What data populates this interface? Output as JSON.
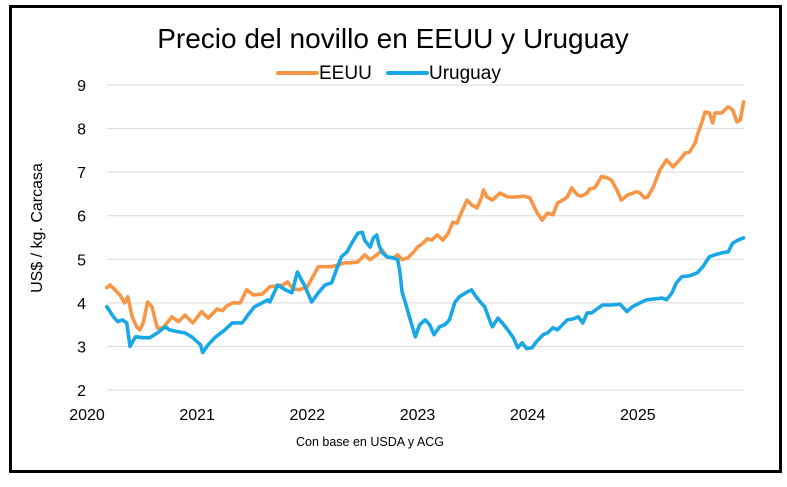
{
  "chart_data": {
    "type": "line",
    "title": "Precio del novillo en EEUU y Uruguay",
    "xlabel": "Con base en USDA y ACG",
    "ylabel": "US$ / kg. Carcasa",
    "xlim": [
      2020,
      2026
    ],
    "ylim": [
      2,
      9
    ],
    "yticks": [
      "2",
      "3",
      "4",
      "5",
      "6",
      "7",
      "8",
      "9"
    ],
    "xticks": [
      "2020",
      "2021",
      "2022",
      "2023",
      "2024",
      "2025"
    ],
    "grid": true,
    "legend_position": "top-center",
    "series": [
      {
        "name": "EEUU",
        "color": "#f79646",
        "points": [
          [
            2020.18,
            4.35
          ],
          [
            2020.21,
            4.41
          ],
          [
            2020.3,
            4.18
          ],
          [
            2020.34,
            4.0
          ],
          [
            2020.37,
            4.14
          ],
          [
            2020.41,
            3.68
          ],
          [
            2020.45,
            3.45
          ],
          [
            2020.48,
            3.38
          ],
          [
            2020.51,
            3.54
          ],
          [
            2020.55,
            4.02
          ],
          [
            2020.59,
            3.91
          ],
          [
            2020.62,
            3.6
          ],
          [
            2020.64,
            3.42
          ],
          [
            2020.69,
            3.42
          ],
          [
            2020.77,
            3.68
          ],
          [
            2020.83,
            3.57
          ],
          [
            2020.89,
            3.72
          ],
          [
            2020.96,
            3.54
          ],
          [
            2021.04,
            3.8
          ],
          [
            2021.1,
            3.65
          ],
          [
            2021.18,
            3.86
          ],
          [
            2021.23,
            3.82
          ],
          [
            2021.27,
            3.93
          ],
          [
            2021.32,
            4.0
          ],
          [
            2021.39,
            4.0
          ],
          [
            2021.45,
            4.3
          ],
          [
            2021.51,
            4.18
          ],
          [
            2021.59,
            4.2
          ],
          [
            2021.66,
            4.37
          ],
          [
            2021.72,
            4.39
          ],
          [
            2021.78,
            4.41
          ],
          [
            2021.82,
            4.48
          ],
          [
            2021.87,
            4.32
          ],
          [
            2021.93,
            4.3
          ],
          [
            2022.0,
            4.37
          ],
          [
            2022.05,
            4.6
          ],
          [
            2022.1,
            4.83
          ],
          [
            2022.16,
            4.83
          ],
          [
            2022.22,
            4.83
          ],
          [
            2022.28,
            4.87
          ],
          [
            2022.34,
            4.92
          ],
          [
            2022.39,
            4.92
          ],
          [
            2022.46,
            4.94
          ],
          [
            2022.52,
            5.1
          ],
          [
            2022.57,
            4.99
          ],
          [
            2022.63,
            5.1
          ],
          [
            2022.68,
            5.21
          ],
          [
            2022.72,
            5.06
          ],
          [
            2022.78,
            5.03
          ],
          [
            2022.82,
            5.1
          ],
          [
            2022.86,
            4.99
          ],
          [
            2022.91,
            5.03
          ],
          [
            2022.96,
            5.15
          ],
          [
            2023.0,
            5.28
          ],
          [
            2023.05,
            5.37
          ],
          [
            2023.09,
            5.47
          ],
          [
            2023.13,
            5.44
          ],
          [
            2023.18,
            5.56
          ],
          [
            2023.23,
            5.44
          ],
          [
            2023.28,
            5.6
          ],
          [
            2023.32,
            5.85
          ],
          [
            2023.36,
            5.83
          ],
          [
            2023.38,
            5.97
          ],
          [
            2023.45,
            6.36
          ],
          [
            2023.49,
            6.25
          ],
          [
            2023.54,
            6.18
          ],
          [
            2023.58,
            6.41
          ],
          [
            2023.6,
            6.59
          ],
          [
            2023.63,
            6.43
          ],
          [
            2023.68,
            6.36
          ],
          [
            2023.75,
            6.52
          ],
          [
            2023.82,
            6.43
          ],
          [
            2023.9,
            6.43
          ],
          [
            2023.96,
            6.45
          ],
          [
            2024.02,
            6.41
          ],
          [
            2024.08,
            6.09
          ],
          [
            2024.13,
            5.9
          ],
          [
            2024.18,
            6.06
          ],
          [
            2024.23,
            6.02
          ],
          [
            2024.27,
            6.29
          ],
          [
            2024.32,
            6.36
          ],
          [
            2024.36,
            6.43
          ],
          [
            2024.4,
            6.64
          ],
          [
            2024.45,
            6.48
          ],
          [
            2024.49,
            6.45
          ],
          [
            2024.54,
            6.52
          ],
          [
            2024.56,
            6.61
          ],
          [
            2024.61,
            6.64
          ],
          [
            2024.67,
            6.9
          ],
          [
            2024.72,
            6.87
          ],
          [
            2024.76,
            6.82
          ],
          [
            2024.81,
            6.59
          ],
          [
            2024.85,
            6.36
          ],
          [
            2024.91,
            6.48
          ],
          [
            2024.99,
            6.55
          ],
          [
            2025.02,
            6.52
          ],
          [
            2025.06,
            6.41
          ],
          [
            2025.09,
            6.43
          ],
          [
            2025.14,
            6.66
          ],
          [
            2025.2,
            7.05
          ],
          [
            2025.26,
            7.28
          ],
          [
            2025.32,
            7.12
          ],
          [
            2025.38,
            7.28
          ],
          [
            2025.43,
            7.44
          ],
          [
            2025.47,
            7.46
          ],
          [
            2025.52,
            7.67
          ],
          [
            2025.54,
            7.85
          ],
          [
            2025.58,
            8.13
          ],
          [
            2025.61,
            8.38
          ],
          [
            2025.65,
            8.36
          ],
          [
            2025.68,
            8.13
          ],
          [
            2025.7,
            8.36
          ],
          [
            2025.76,
            8.36
          ],
          [
            2025.82,
            8.5
          ],
          [
            2025.86,
            8.43
          ],
          [
            2025.9,
            8.15
          ],
          [
            2025.93,
            8.2
          ],
          [
            2025.96,
            8.61
          ]
        ]
      },
      {
        "name": "Uruguay",
        "color": "#1aa7e6",
        "points": [
          [
            2020.18,
            3.91
          ],
          [
            2020.24,
            3.68
          ],
          [
            2020.28,
            3.57
          ],
          [
            2020.32,
            3.61
          ],
          [
            2020.36,
            3.54
          ],
          [
            2020.39,
            3.0
          ],
          [
            2020.44,
            3.22
          ],
          [
            2020.51,
            3.2
          ],
          [
            2020.57,
            3.2
          ],
          [
            2020.64,
            3.31
          ],
          [
            2020.71,
            3.45
          ],
          [
            2020.75,
            3.38
          ],
          [
            2020.82,
            3.34
          ],
          [
            2020.89,
            3.31
          ],
          [
            2020.95,
            3.22
          ],
          [
            2021.03,
            3.04
          ],
          [
            2021.05,
            2.86
          ],
          [
            2021.1,
            3.04
          ],
          [
            2021.16,
            3.2
          ],
          [
            2021.25,
            3.38
          ],
          [
            2021.32,
            3.54
          ],
          [
            2021.41,
            3.54
          ],
          [
            2021.46,
            3.72
          ],
          [
            2021.52,
            3.91
          ],
          [
            2021.59,
            4.0
          ],
          [
            2021.64,
            4.07
          ],
          [
            2021.66,
            4.02
          ],
          [
            2021.73,
            4.41
          ],
          [
            2021.8,
            4.3
          ],
          [
            2021.86,
            4.23
          ],
          [
            2021.91,
            4.71
          ],
          [
            2021.98,
            4.37
          ],
          [
            2022.04,
            4.02
          ],
          [
            2022.1,
            4.23
          ],
          [
            2022.16,
            4.41
          ],
          [
            2022.22,
            4.46
          ],
          [
            2022.27,
            4.8
          ],
          [
            2022.31,
            5.06
          ],
          [
            2022.36,
            5.17
          ],
          [
            2022.41,
            5.4
          ],
          [
            2022.46,
            5.6
          ],
          [
            2022.5,
            5.62
          ],
          [
            2022.52,
            5.44
          ],
          [
            2022.57,
            5.28
          ],
          [
            2022.6,
            5.49
          ],
          [
            2022.63,
            5.56
          ],
          [
            2022.65,
            5.33
          ],
          [
            2022.68,
            5.15
          ],
          [
            2022.72,
            5.06
          ],
          [
            2022.78,
            5.03
          ],
          [
            2022.82,
            4.99
          ],
          [
            2022.84,
            4.71
          ],
          [
            2022.86,
            4.25
          ],
          [
            2022.89,
            4.0
          ],
          [
            2022.93,
            3.65
          ],
          [
            2022.98,
            3.22
          ],
          [
            2023.02,
            3.5
          ],
          [
            2023.07,
            3.61
          ],
          [
            2023.11,
            3.5
          ],
          [
            2023.15,
            3.27
          ],
          [
            2023.2,
            3.45
          ],
          [
            2023.25,
            3.5
          ],
          [
            2023.29,
            3.61
          ],
          [
            2023.34,
            4.02
          ],
          [
            2023.38,
            4.14
          ],
          [
            2023.45,
            4.25
          ],
          [
            2023.49,
            4.3
          ],
          [
            2023.52,
            4.18
          ],
          [
            2023.57,
            4.02
          ],
          [
            2023.61,
            3.91
          ],
          [
            2023.66,
            3.57
          ],
          [
            2023.68,
            3.45
          ],
          [
            2023.73,
            3.65
          ],
          [
            2023.77,
            3.54
          ],
          [
            2023.82,
            3.38
          ],
          [
            2023.87,
            3.2
          ],
          [
            2023.91,
            2.97
          ],
          [
            2023.95,
            3.08
          ],
          [
            2023.99,
            2.95
          ],
          [
            2024.04,
            2.97
          ],
          [
            2024.08,
            3.11
          ],
          [
            2024.14,
            3.27
          ],
          [
            2024.18,
            3.31
          ],
          [
            2024.23,
            3.43
          ],
          [
            2024.27,
            3.38
          ],
          [
            2024.36,
            3.61
          ],
          [
            2024.41,
            3.63
          ],
          [
            2024.46,
            3.68
          ],
          [
            2024.5,
            3.54
          ],
          [
            2024.54,
            3.77
          ],
          [
            2024.58,
            3.77
          ],
          [
            2024.64,
            3.88
          ],
          [
            2024.68,
            3.95
          ],
          [
            2024.76,
            3.95
          ],
          [
            2024.84,
            3.97
          ],
          [
            2024.9,
            3.8
          ],
          [
            2024.95,
            3.91
          ],
          [
            2025.02,
            4.0
          ],
          [
            2025.08,
            4.07
          ],
          [
            2025.15,
            4.09
          ],
          [
            2025.22,
            4.11
          ],
          [
            2025.26,
            4.07
          ],
          [
            2025.31,
            4.23
          ],
          [
            2025.35,
            4.46
          ],
          [
            2025.4,
            4.6
          ],
          [
            2025.47,
            4.62
          ],
          [
            2025.54,
            4.69
          ],
          [
            2025.59,
            4.83
          ],
          [
            2025.65,
            5.06
          ],
          [
            2025.72,
            5.12
          ],
          [
            2025.77,
            5.15
          ],
          [
            2025.82,
            5.17
          ],
          [
            2025.86,
            5.37
          ],
          [
            2025.91,
            5.44
          ],
          [
            2025.96,
            5.49
          ]
        ]
      }
    ]
  }
}
